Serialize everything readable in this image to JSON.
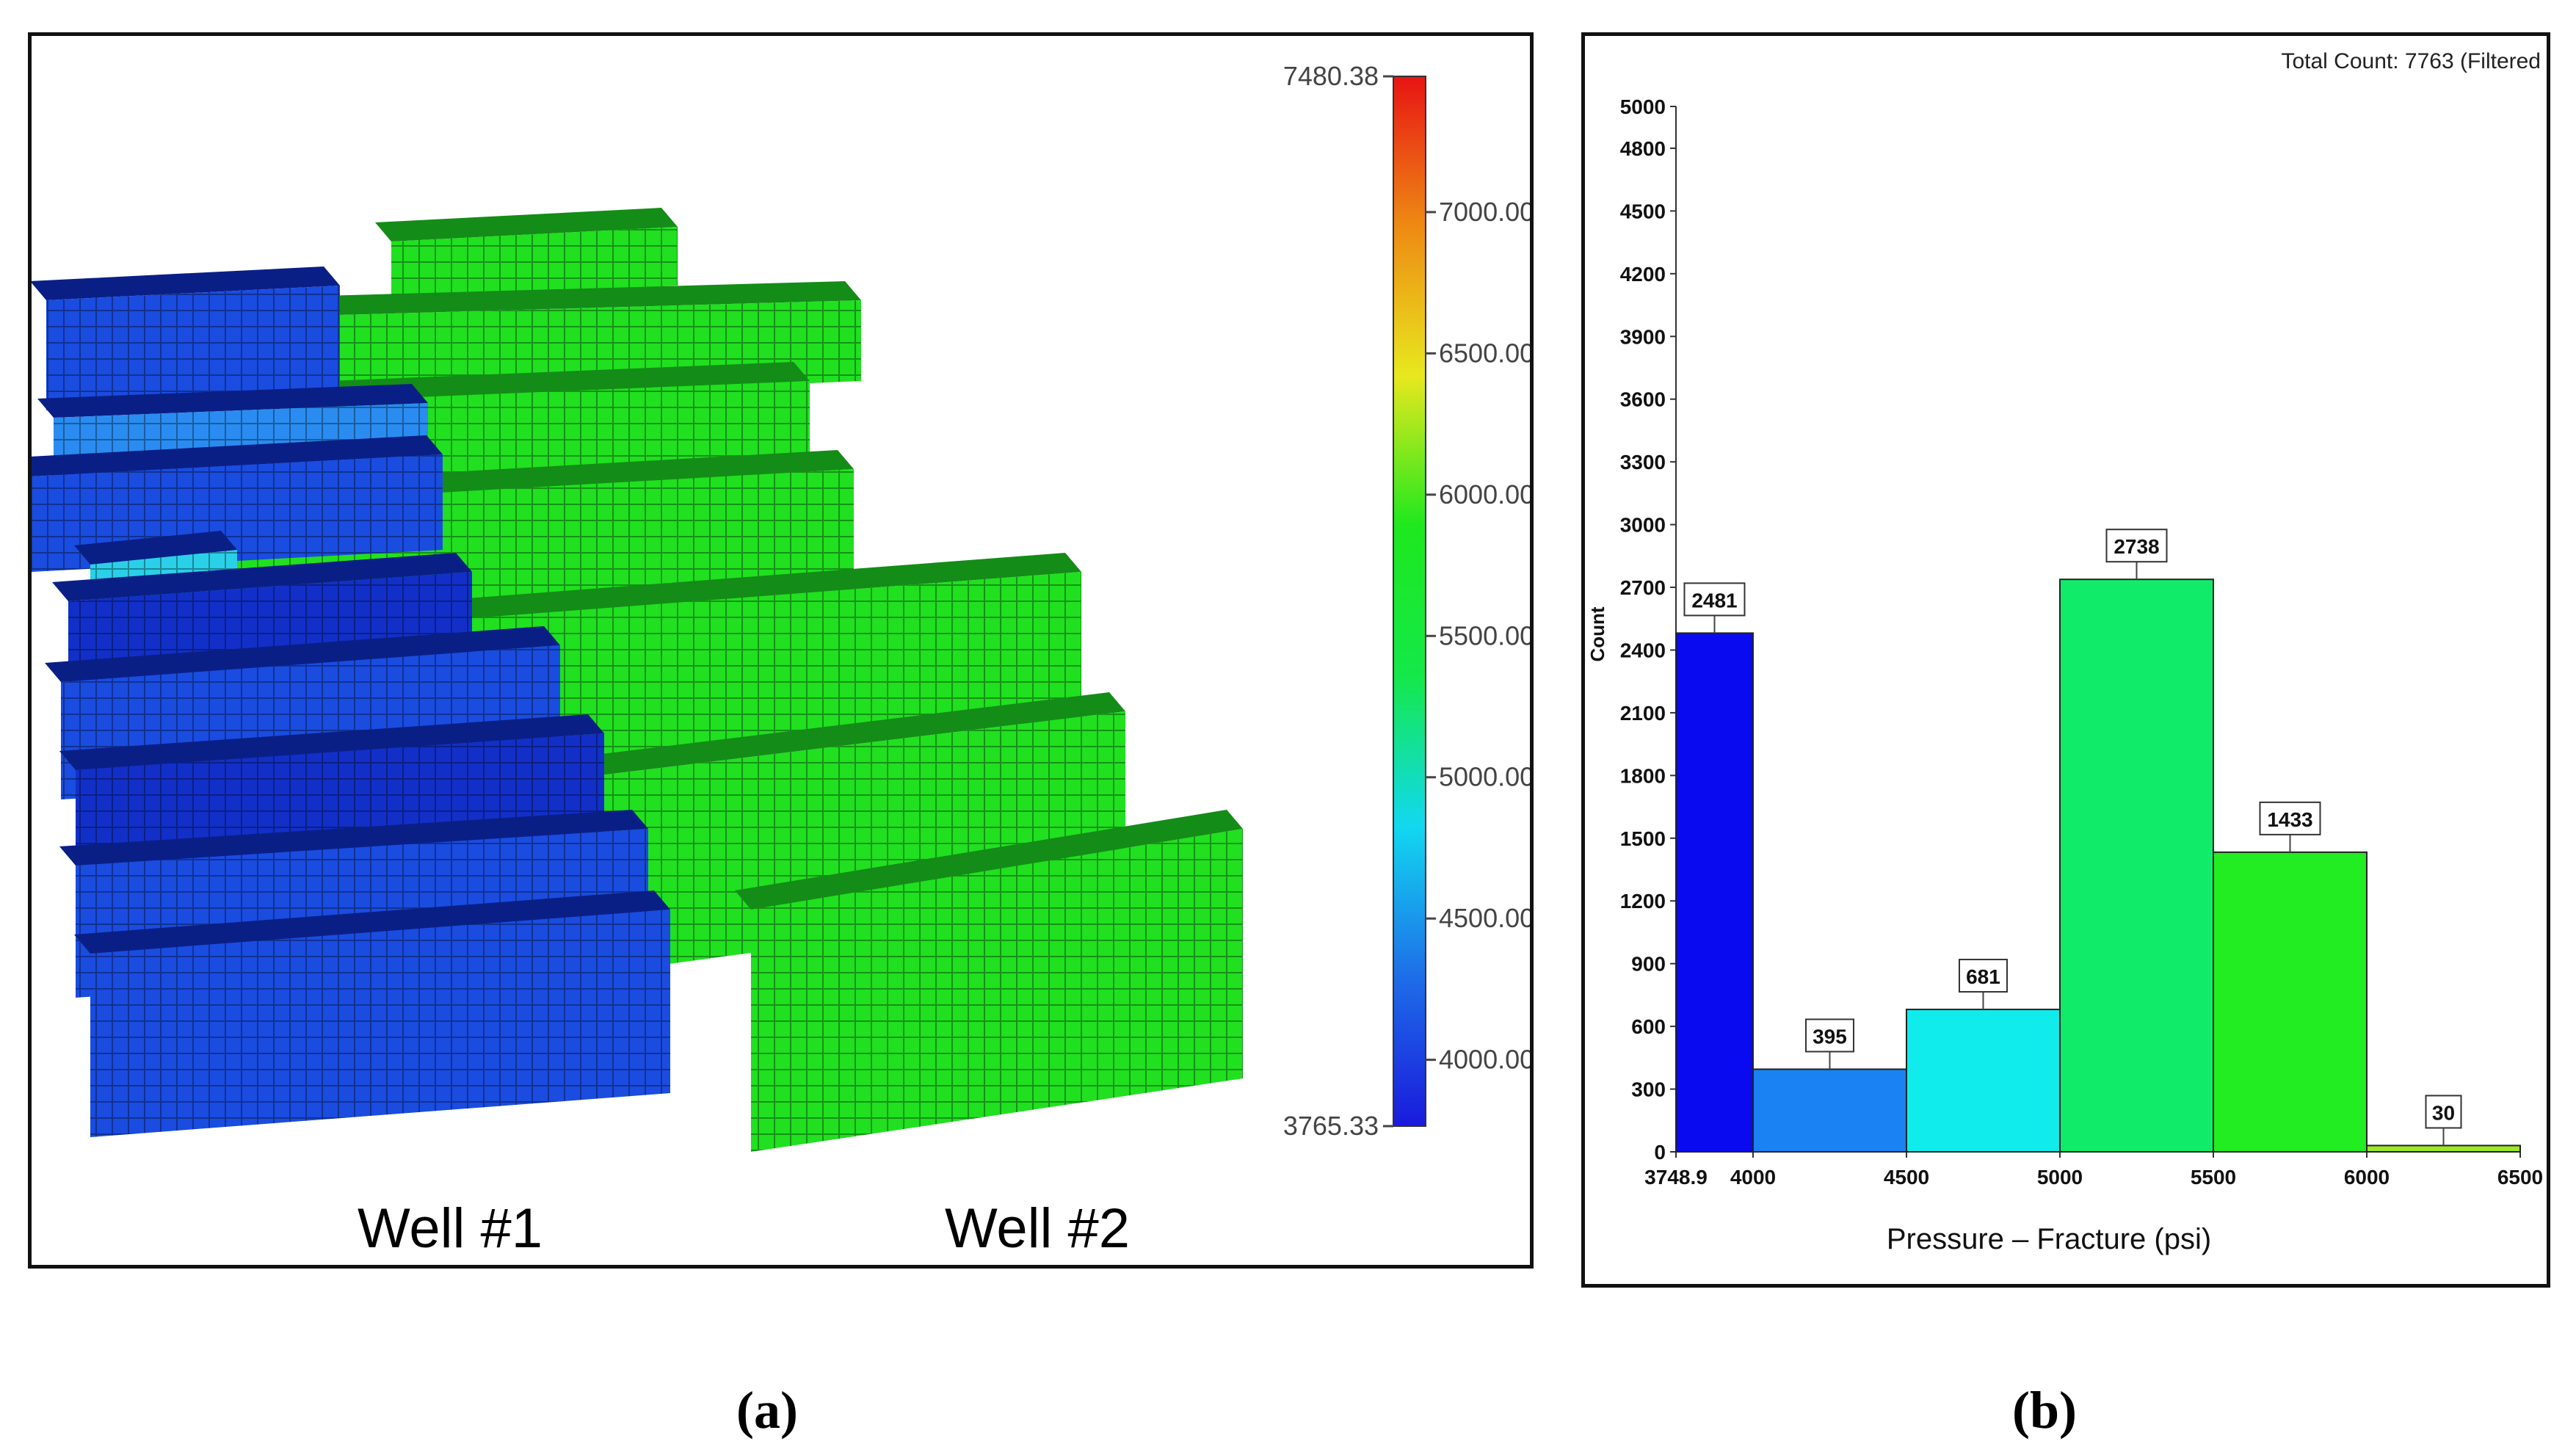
{
  "figure": {
    "panel_a": {
      "caption": "(a)",
      "well_labels": [
        "Well #1",
        "Well #2"
      ],
      "colorbar": {
        "min_label": "3765.33",
        "max_label": "7480.38",
        "min": 3765.33,
        "max": 7480.38,
        "ticks": [
          {
            "value": 4000,
            "label": "4000.00"
          },
          {
            "value": 4500,
            "label": "4500.00"
          },
          {
            "value": 5000,
            "label": "5000.00"
          },
          {
            "value": 5500,
            "label": "5500.00"
          },
          {
            "value": 6000,
            "label": "6000.00"
          },
          {
            "value": 6500,
            "label": "6500.00"
          },
          {
            "value": 7000,
            "label": "7000.00"
          }
        ],
        "gradient": [
          "#1a1adc",
          "#1e6ee8",
          "#12d8f0",
          "#14e84a",
          "#1ee81e",
          "#e8e81e",
          "#ee8a14",
          "#e81414"
        ]
      },
      "block_colors": {
        "well1_dark": "#1230c8",
        "well1_mid": "#1a4ce0",
        "well1_light": "#2a8cf0",
        "well1_cyan": "#2ad0e8",
        "well2_green": "#20e020",
        "well2_green_dark": "#148c18"
      }
    },
    "panel_b": {
      "caption": "(b)",
      "total_count_label": "Total Count: 7763 (Filtered"
    }
  },
  "chart_data": {
    "type": "bar",
    "title": "",
    "xlabel": "Pressure – Fracture (psi)",
    "ylabel": "Count",
    "xlim": [
      3748.9,
      6500
    ],
    "ylim": [
      0,
      5000
    ],
    "x_tick_labels": [
      "3748.9",
      "4000",
      "4500",
      "5000",
      "5500",
      "6000",
      "6500"
    ],
    "x_ticks": [
      3748.9,
      4000,
      4500,
      5000,
      5500,
      6000,
      6500
    ],
    "y_ticks": [
      0,
      300,
      600,
      900,
      1200,
      1500,
      1800,
      2100,
      2400,
      2700,
      3000,
      3300,
      3600,
      3900,
      4200,
      4500,
      4800,
      5000
    ],
    "bins": [
      {
        "start": 3748.9,
        "end": 4000,
        "value": 2481,
        "label": "2481",
        "color": "#0a0af0"
      },
      {
        "start": 4000,
        "end": 4500,
        "value": 395,
        "label": "395",
        "color": "#1a82f2"
      },
      {
        "start": 4500,
        "end": 5000,
        "value": 681,
        "label": "681",
        "color": "#10ecec"
      },
      {
        "start": 5000,
        "end": 5500,
        "value": 2738,
        "label": "2738",
        "color": "#10ec6a"
      },
      {
        "start": 5500,
        "end": 6000,
        "value": 1433,
        "label": "1433",
        "color": "#22ec22"
      },
      {
        "start": 6000,
        "end": 6500,
        "value": 30,
        "label": "30",
        "color": "#9ee82a"
      }
    ],
    "grid": false
  }
}
